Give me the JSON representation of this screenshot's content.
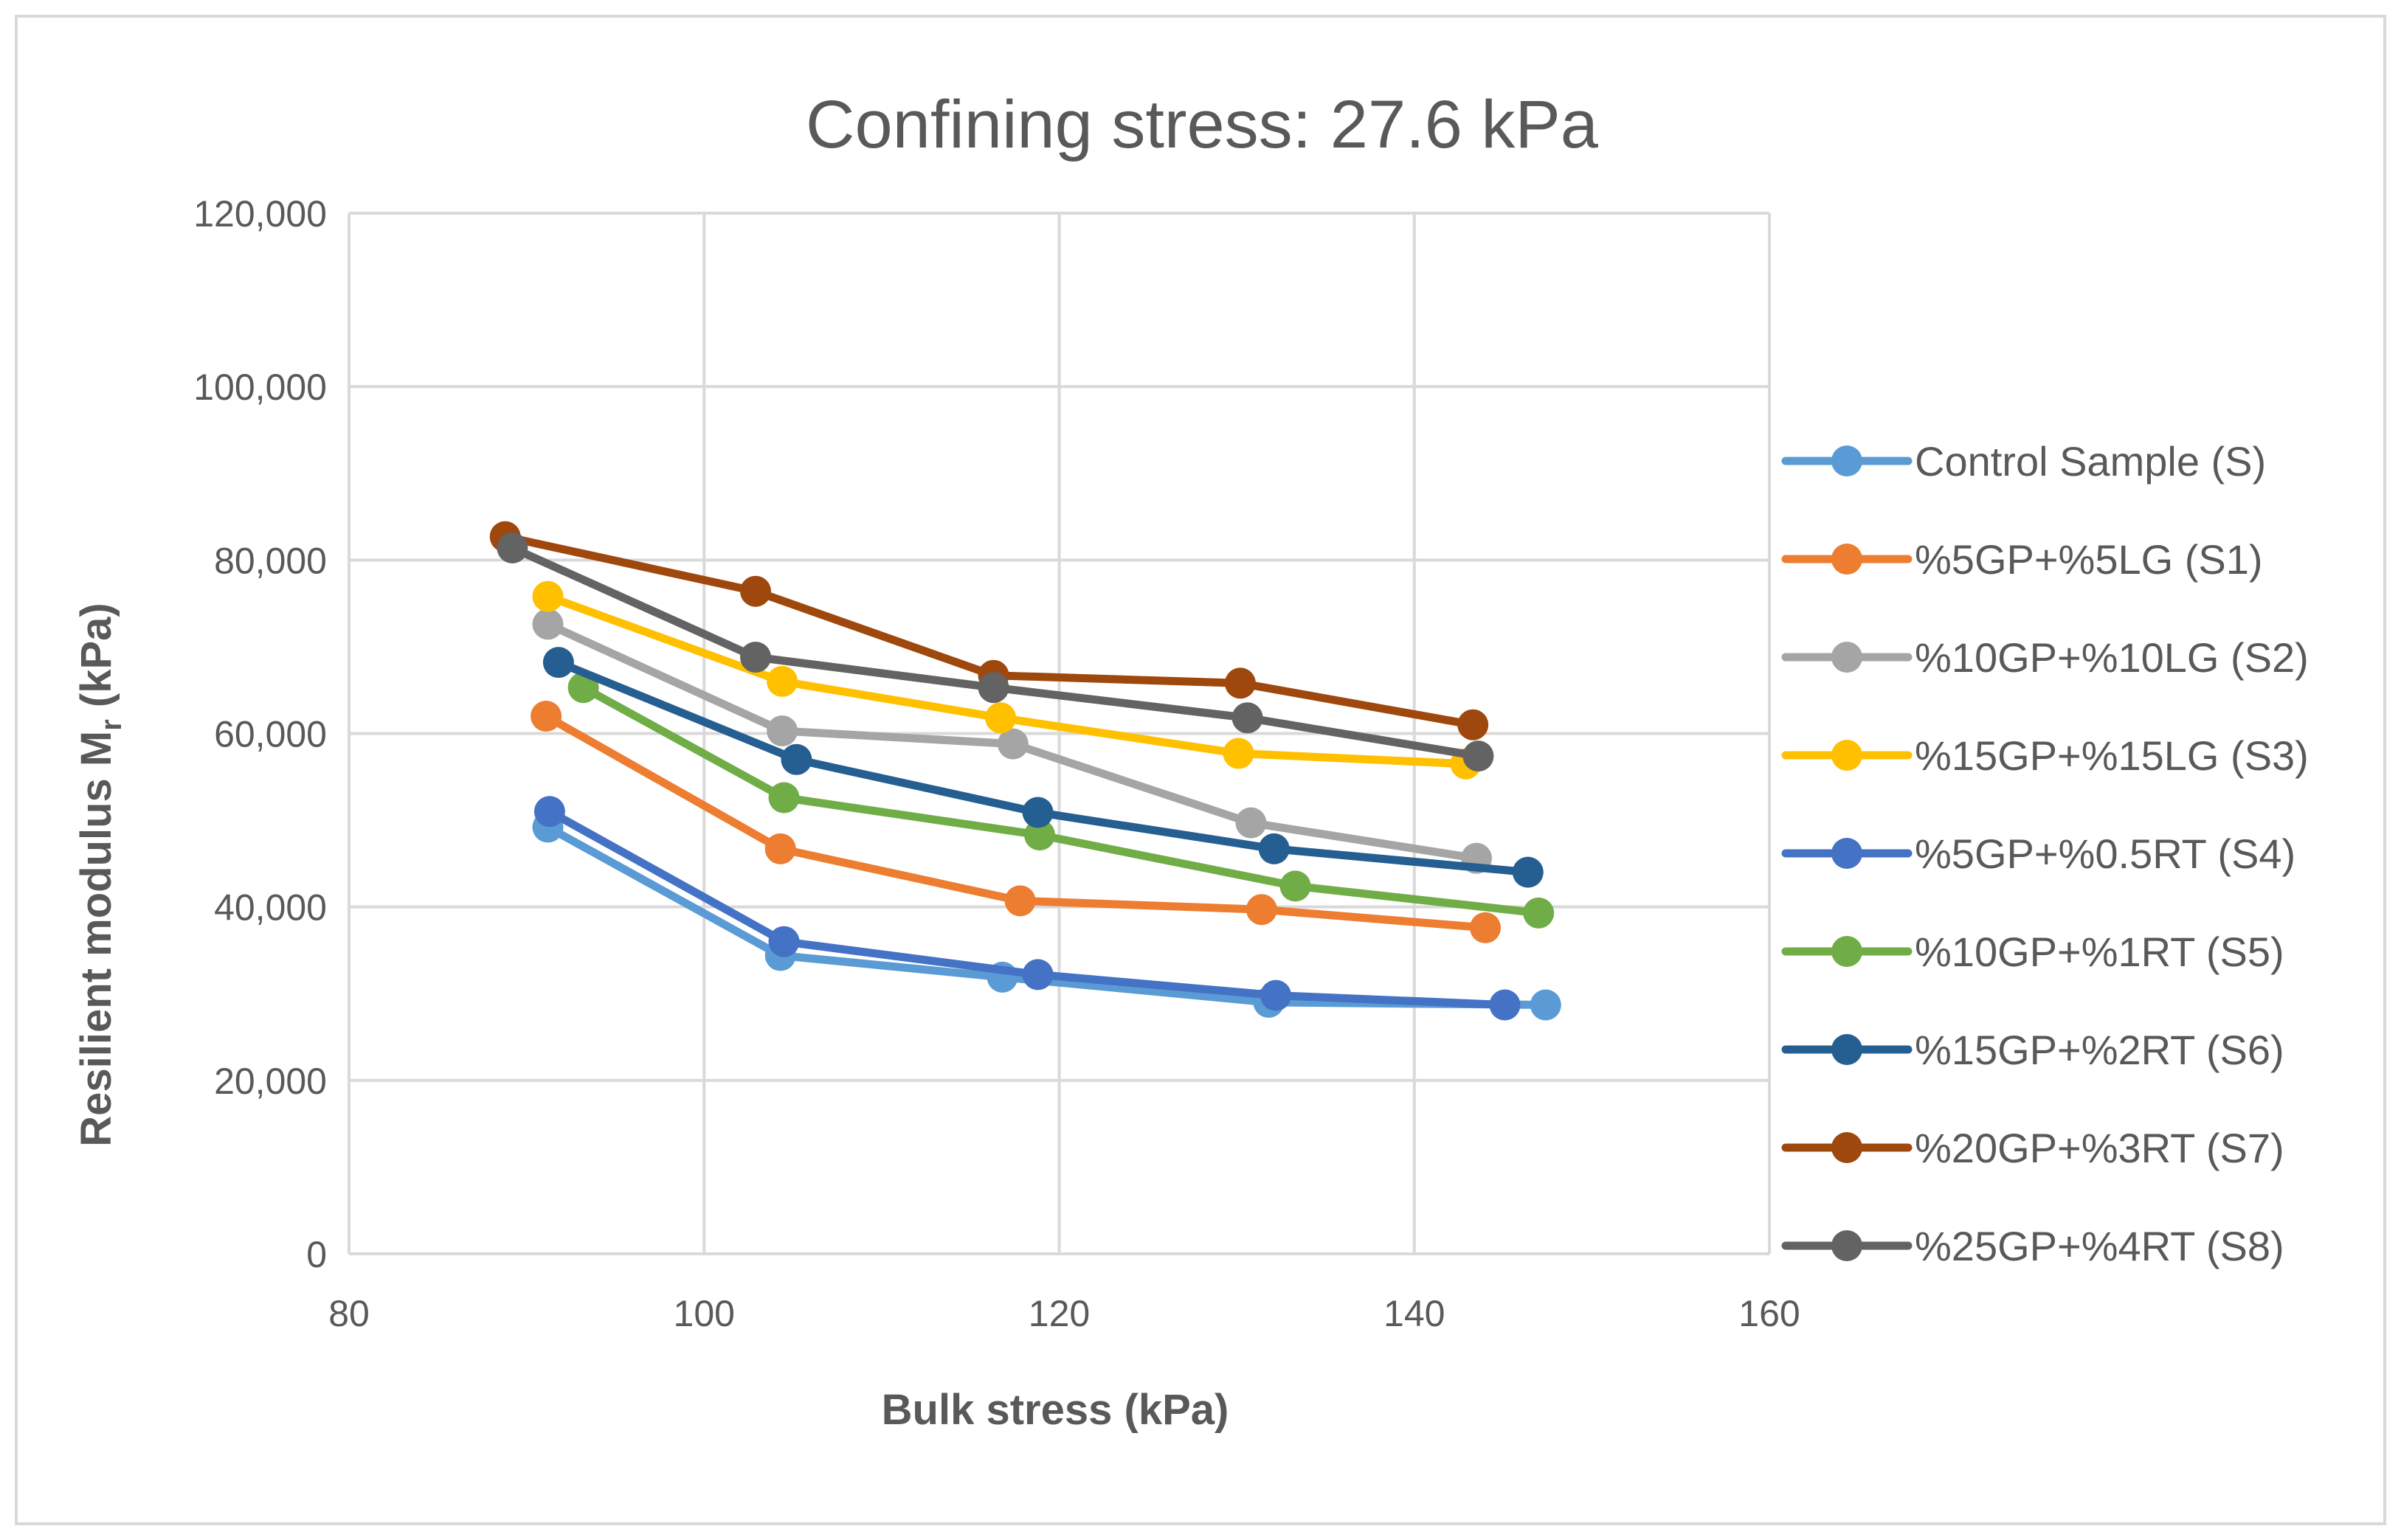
{
  "chart_data": {
    "type": "line",
    "title": "Confining stress: 27.6 kPa",
    "xlabel": "Bulk stress (kPa)",
    "ylabel_main": "Resilient modulus M",
    "ylabel_sub": "r",
    "ylabel_unit": " (kPa)",
    "xlim": [
      80,
      160
    ],
    "ylim": [
      0,
      120000
    ],
    "xticks": [
      80,
      100,
      120,
      140,
      160
    ],
    "xtick_labels": [
      "80",
      "100",
      "120",
      "140",
      "160"
    ],
    "yticks": [
      0,
      20000,
      40000,
      60000,
      80000,
      100000,
      120000
    ],
    "ytick_labels": [
      "0",
      "20,000",
      "40,000",
      "60,000",
      "80,000",
      "100,000",
      "120,000"
    ],
    "grid": true,
    "legend_position": "right",
    "series": [
      {
        "name": "Control Sample (S)",
        "color": "#5B9BD5",
        "points": [
          [
            91.2,
            49200
          ],
          [
            104.3,
            34400
          ],
          [
            116.8,
            31900
          ],
          [
            131.8,
            29000
          ],
          [
            147.4,
            28700
          ]
        ]
      },
      {
        "name": "%5GP+%5LG (S1)",
        "color": "#ED7D31",
        "points": [
          [
            91.1,
            62000
          ],
          [
            104.3,
            46700
          ],
          [
            117.8,
            40700
          ],
          [
            131.4,
            39700
          ],
          [
            144.0,
            37600
          ]
        ]
      },
      {
        "name": "%10GP+%10LG (S2)",
        "color": "#A5A5A5",
        "points": [
          [
            91.2,
            72600
          ],
          [
            104.4,
            60300
          ],
          [
            117.4,
            58800
          ],
          [
            130.8,
            49700
          ],
          [
            143.5,
            45600
          ]
        ]
      },
      {
        "name": "%15GP+%15LG (S3)",
        "color": "#FFC000",
        "points": [
          [
            91.2,
            75800
          ],
          [
            104.4,
            66000
          ],
          [
            116.7,
            61800
          ],
          [
            130.1,
            57700
          ],
          [
            142.9,
            56500
          ]
        ]
      },
      {
        "name": "%5GP+%0.5RT (S4)",
        "color": "#4472C4",
        "points": [
          [
            91.3,
            51000
          ],
          [
            104.5,
            36000
          ],
          [
            118.8,
            32200
          ],
          [
            132.2,
            29800
          ],
          [
            145.1,
            28700
          ]
        ]
      },
      {
        "name": "%10GP+%1RT (S5)",
        "color": "#70AD47",
        "points": [
          [
            93.2,
            65300
          ],
          [
            104.5,
            52600
          ],
          [
            118.9,
            48300
          ],
          [
            133.3,
            42400
          ],
          [
            147.0,
            39300
          ]
        ]
      },
      {
        "name": "%15GP+%2RT (S6)",
        "color": "#255E91",
        "points": [
          [
            91.8,
            68200
          ],
          [
            105.2,
            57000
          ],
          [
            118.8,
            50900
          ],
          [
            132.1,
            46700
          ],
          [
            146.4,
            44000
          ]
        ]
      },
      {
        "name": "%20GP+%3RT (S7)",
        "color": "#9E480E",
        "points": [
          [
            88.8,
            82700
          ],
          [
            102.9,
            76400
          ],
          [
            116.3,
            66700
          ],
          [
            130.2,
            65800
          ],
          [
            143.3,
            61000
          ]
        ]
      },
      {
        "name": "%25GP+%4RT (S8)",
        "color": "#636363",
        "points": [
          [
            89.2,
            81400
          ],
          [
            102.9,
            68800
          ],
          [
            116.3,
            65300
          ],
          [
            130.6,
            61800
          ],
          [
            143.6,
            57400
          ]
        ]
      }
    ]
  }
}
